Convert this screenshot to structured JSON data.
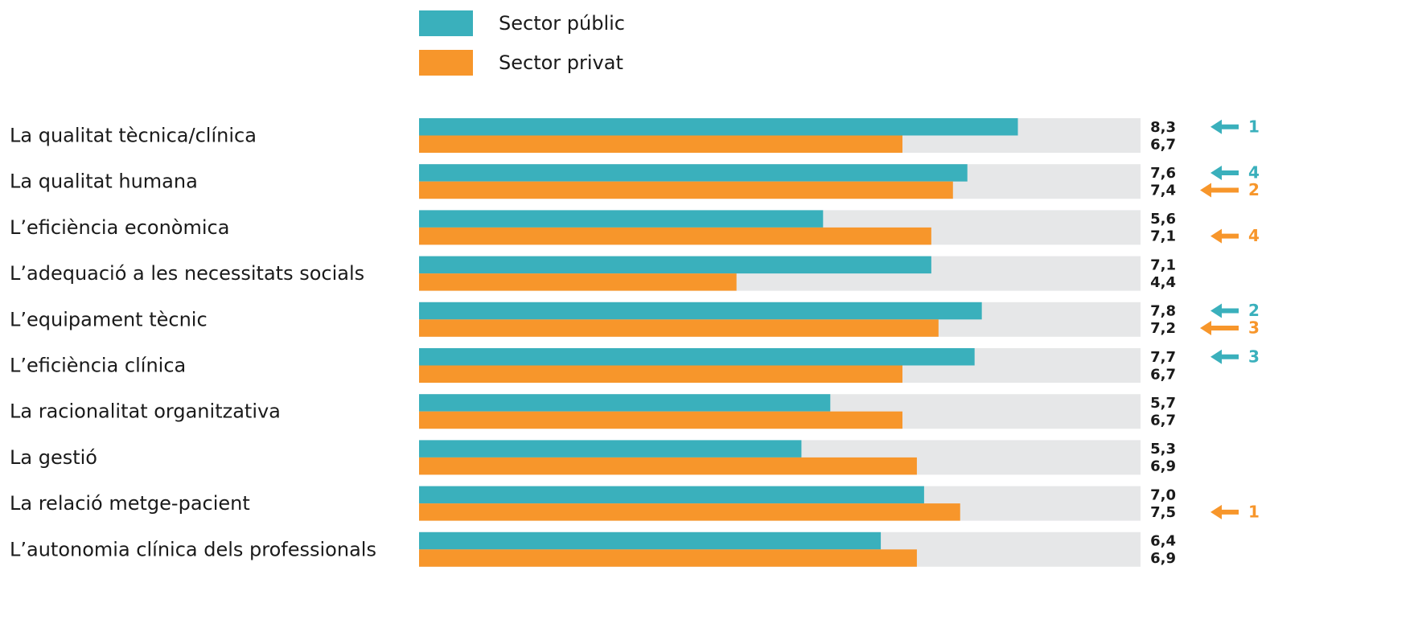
{
  "chart_data": {
    "type": "bar",
    "categories": [
      "La qualitat tècnica/clínica",
      "La qualitat humana",
      "L’eficiència econòmica",
      "L’adequació a les necessitats socials",
      "L’equipament tècnic",
      "L’eficiència clínica",
      "La racionalitat organitzativa",
      "La gestió",
      "La relació metge-pacient",
      "L’autonomia clínica dels professionals"
    ],
    "xlim": [
      0,
      10
    ],
    "series": [
      {
        "name": "Sector públic",
        "color": "#3ab0bc",
        "values": [
          8.3,
          7.6,
          5.6,
          7.1,
          7.8,
          7.7,
          5.7,
          5.3,
          7.0,
          6.4
        ],
        "value_labels": [
          "8,3",
          "7,6",
          "5,6",
          "7,1",
          "7,8",
          "7,7",
          "5,7",
          "5,3",
          "7,0",
          "6,4"
        ],
        "ranks": [
          1,
          4,
          null,
          null,
          2,
          3,
          null,
          null,
          null,
          null
        ]
      },
      {
        "name": "Sector privat",
        "color": "#f7962b",
        "values": [
          6.7,
          7.4,
          7.1,
          4.4,
          7.2,
          6.7,
          6.7,
          6.9,
          7.5,
          6.9
        ],
        "value_labels": [
          "6,7",
          "7,4",
          "7,1",
          "4,4",
          "7,2",
          "6,7",
          "6,7",
          "6,9",
          "7,5",
          "6,9"
        ],
        "ranks": [
          null,
          2,
          4,
          null,
          3,
          null,
          null,
          null,
          1,
          null
        ]
      }
    ]
  }
}
